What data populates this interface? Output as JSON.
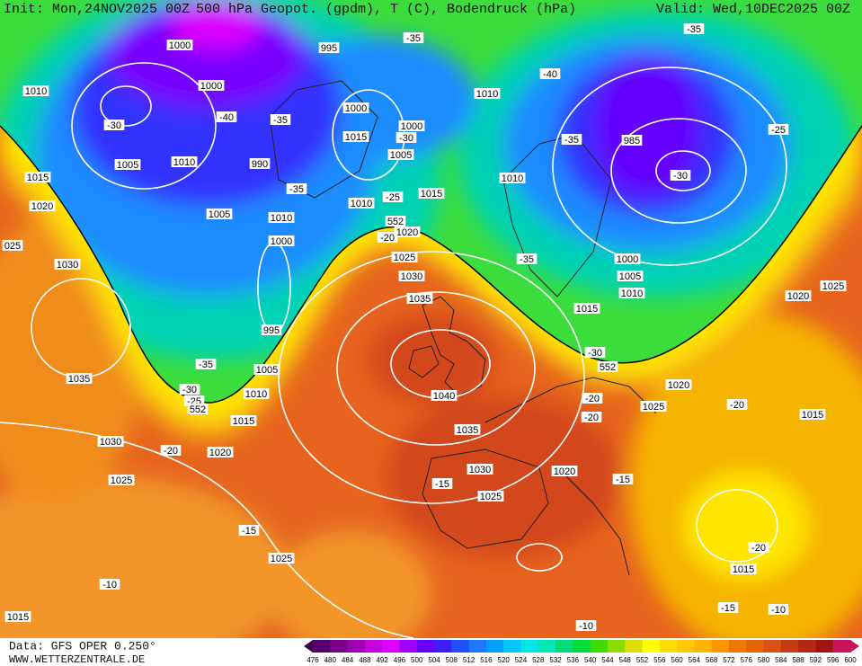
{
  "header": {
    "init": "Init: Mon,24NOV2025 00Z",
    "title": "500 hPa Geopot. (gpdm), T (C), Bodendruck (hPa)",
    "valid": "Valid: Wed,10DEC2025 00Z"
  },
  "footer": {
    "data": "Data: GFS OPER 0.250°",
    "site": "WWW.WETTERZENTRALE.DE"
  },
  "colorbar": {
    "labels": [
      476,
      480,
      484,
      488,
      492,
      496,
      500,
      504,
      508,
      512,
      516,
      520,
      524,
      528,
      532,
      536,
      540,
      544,
      548,
      552,
      556,
      560,
      564,
      568,
      572,
      576,
      580,
      584,
      588,
      592,
      596,
      600
    ]
  },
  "map": {
    "labels": [
      "1000",
      "995",
      "-35",
      "1000",
      "1010",
      "1010",
      "-40",
      "-35",
      "-30",
      "-40",
      "-35",
      "1000",
      "1015",
      "1000",
      "-30",
      "-35",
      "985",
      "-25",
      "1005",
      "1010",
      "990",
      "1005",
      "-30",
      "1015",
      "-35",
      "-25",
      "1015",
      "1010",
      "1010",
      "1020",
      "1005",
      "1010",
      "552",
      "1020",
      "-20",
      "025",
      "1000",
      "1025",
      "-35",
      "1000",
      "1030",
      "1030",
      "1005",
      "1020",
      "1025",
      "1010",
      "1035",
      "1015",
      "995",
      "-30",
      "552",
      "-35",
      "1005",
      "1035",
      "-30",
      "-25",
      "552",
      "1010",
      "1040",
      "1020",
      "-20",
      "-20",
      "1025",
      "1015",
      "-20",
      "1015",
      "1035",
      "1030",
      "-20",
      "1020",
      "1030",
      "1020",
      "-15",
      "1025",
      "-15",
      "1025",
      "-20",
      "-15",
      "1025",
      "1015",
      "-10",
      "-15",
      "-10",
      "1015",
      "-10"
    ]
  }
}
